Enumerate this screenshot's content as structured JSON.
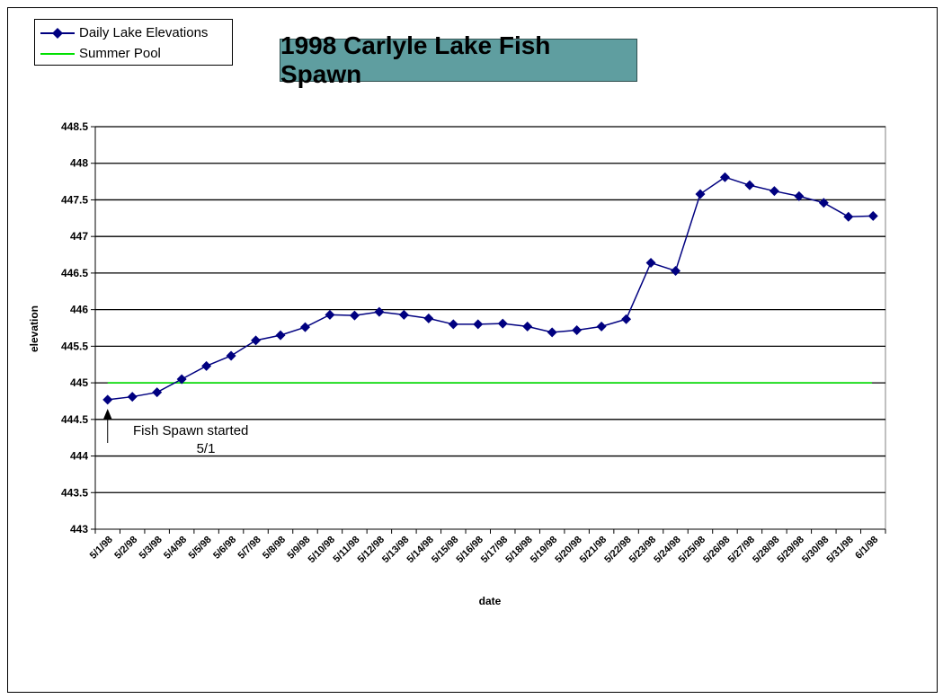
{
  "chart_data": {
    "type": "line",
    "title": "1998 Carlyle Lake Fish Spawn",
    "xlabel": "date",
    "ylabel": "elevation",
    "ylim": [
      443,
      448.5
    ],
    "yticks": [
      "448.5",
      "448",
      "447.5",
      "447",
      "446.5",
      "446",
      "445.5",
      "445",
      "444.5",
      "444",
      "443.5",
      "443"
    ],
    "categories": [
      "5/1/98",
      "5/2/98",
      "5/3/98",
      "5/4/98",
      "5/5/98",
      "5/6/98",
      "5/7/98",
      "5/8/98",
      "5/9/98",
      "5/10/98",
      "5/11/98",
      "5/12/98",
      "5/13/98",
      "5/14/98",
      "5/15/98",
      "5/16/98",
      "5/17/98",
      "5/18/98",
      "5/19/98",
      "5/20/98",
      "5/21/98",
      "5/22/98",
      "5/23/98",
      "5/24/98",
      "5/25/98",
      "5/26/98",
      "5/27/98",
      "5/28/98",
      "5/29/98",
      "5/30/98",
      "5/31/98",
      "6/1/98"
    ],
    "series": [
      {
        "name": "Daily Lake Elevations",
        "color": "#000080",
        "marker": "diamond",
        "values": [
          444.77,
          444.81,
          444.87,
          445.05,
          445.23,
          445.37,
          445.58,
          445.65,
          445.76,
          445.93,
          445.92,
          445.97,
          445.93,
          445.88,
          445.8,
          445.8,
          445.81,
          445.77,
          445.69,
          445.72,
          445.77,
          445.87,
          446.64,
          446.53,
          447.58,
          447.81,
          447.7,
          447.62,
          447.55,
          447.46,
          447.27,
          447.28
        ]
      },
      {
        "name": "Summer Pool",
        "color": "#00e000",
        "value": 445.0
      }
    ],
    "grid": true,
    "legend_position": "top-left",
    "annotation": {
      "line1": "Fish Spawn started",
      "line2": "5/1",
      "target_category": "5/1/98"
    }
  },
  "title_box_color": "#5f9ea0"
}
